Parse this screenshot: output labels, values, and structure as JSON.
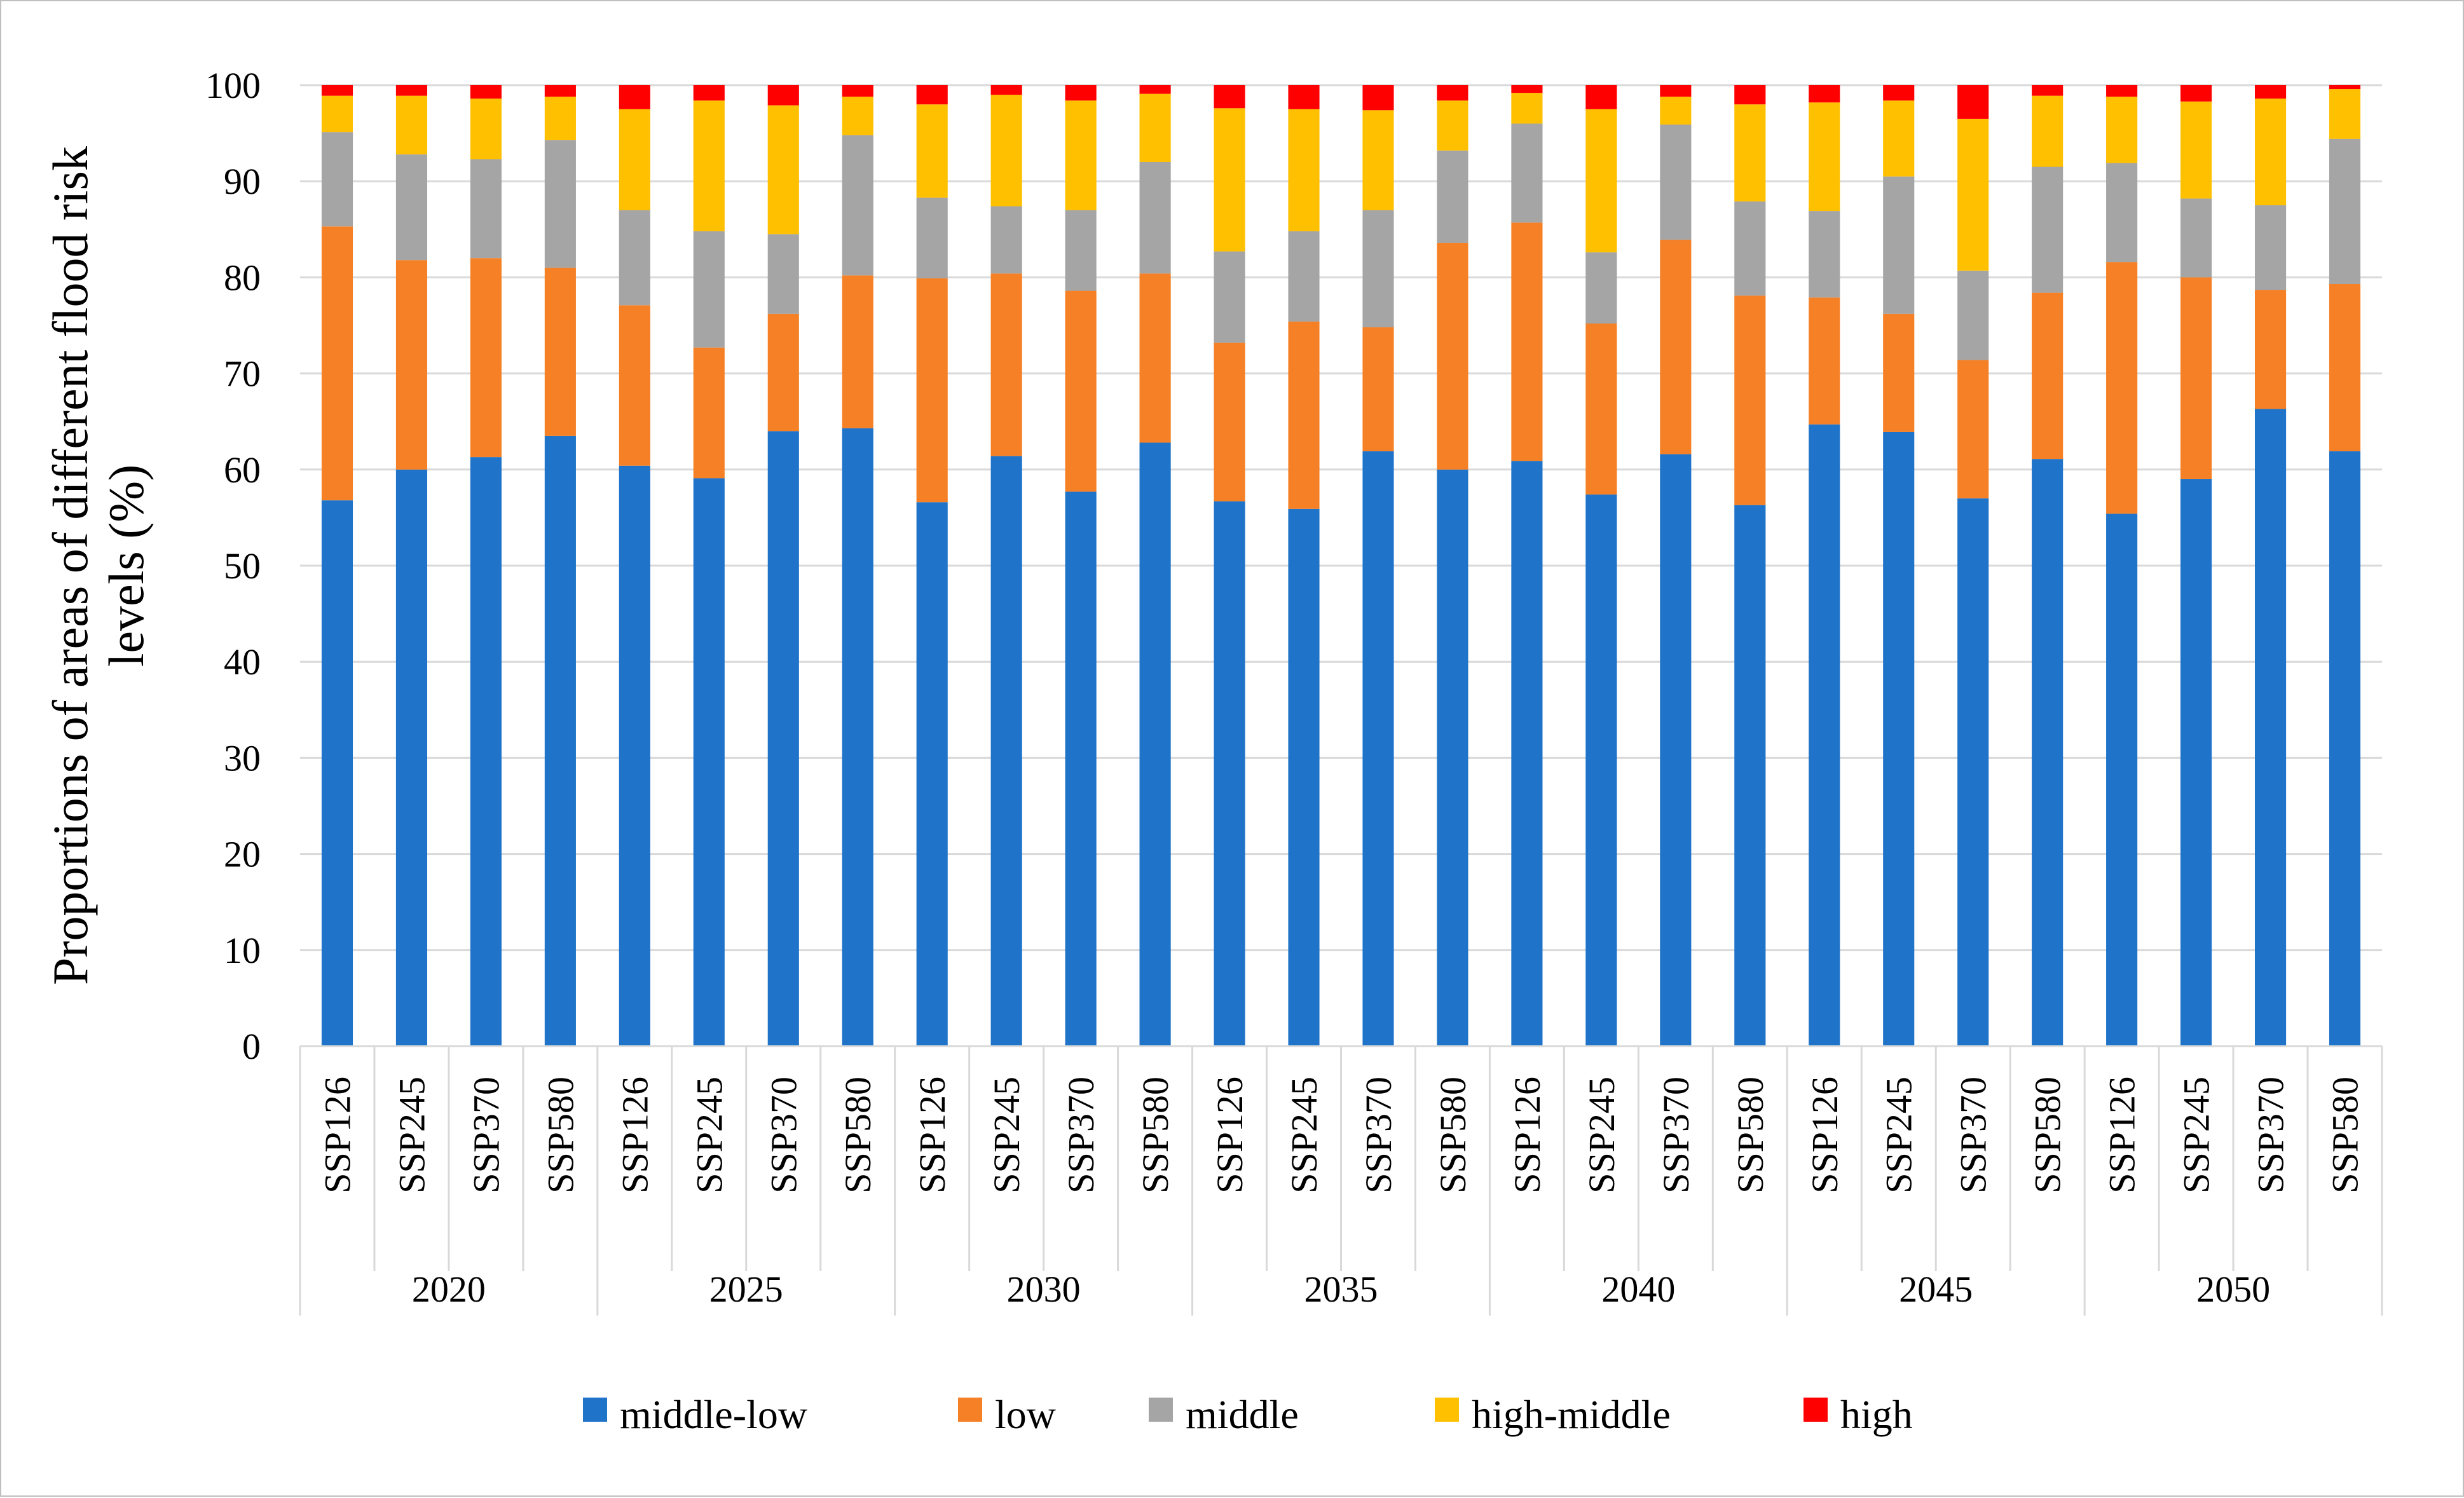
{
  "chart_data": {
    "type": "bar",
    "stacked": true,
    "title": "",
    "xlabel": "",
    "ylabel": "Proportions of areas of different flood risk levels (%)",
    "ylabel_lines": [
      "Proportions of areas of different flood risk",
      "levels (%)"
    ],
    "ylim": [
      0,
      100
    ],
    "yticks": [
      0,
      10,
      20,
      30,
      40,
      50,
      60,
      70,
      80,
      90,
      100
    ],
    "grid": true,
    "legend_position": "bottom",
    "groups": [
      {
        "label": "2020",
        "categories": [
          "SSP126",
          "SSP245",
          "SSP370",
          "SSP580"
        ]
      },
      {
        "label": "2025",
        "categories": [
          "SSP126",
          "SSP245",
          "SSP370",
          "SSP580"
        ]
      },
      {
        "label": "2030",
        "categories": [
          "SSP126",
          "SSP245",
          "SSP370",
          "SSP580"
        ]
      },
      {
        "label": "2035",
        "categories": [
          "SSP126",
          "SSP245",
          "SSP370",
          "SSP580"
        ]
      },
      {
        "label": "2040",
        "categories": [
          "SSP126",
          "SSP245",
          "SSP370",
          "SSP580"
        ]
      },
      {
        "label": "2045",
        "categories": [
          "SSP126",
          "SSP245",
          "SSP370",
          "SSP580"
        ]
      },
      {
        "label": "2050",
        "categories": [
          "SSP126",
          "SSP245",
          "SSP370",
          "SSP580"
        ]
      }
    ],
    "series": [
      {
        "name": "middle-low",
        "color": "#1f73c8",
        "values": [
          56.8,
          60.0,
          61.3,
          63.5,
          60.4,
          59.1,
          64.0,
          64.3,
          56.6,
          61.4,
          57.7,
          62.8,
          56.7,
          55.9,
          61.9,
          60.0,
          60.9,
          57.4,
          61.6,
          56.3,
          64.7,
          63.9,
          57.0,
          61.1,
          55.4,
          59.0,
          66.3,
          61.9
        ]
      },
      {
        "name": "low",
        "color": "#f58026",
        "values": [
          28.5,
          21.8,
          20.7,
          17.5,
          16.7,
          13.6,
          12.2,
          15.9,
          23.3,
          19.0,
          20.9,
          17.6,
          16.5,
          19.5,
          12.9,
          23.6,
          24.8,
          17.8,
          22.3,
          21.8,
          13.2,
          12.3,
          14.4,
          17.3,
          26.2,
          21.0,
          12.4,
          17.4
        ]
      },
      {
        "name": "middle",
        "color": "#a5a5a5",
        "values": [
          9.8,
          11.0,
          10.3,
          13.3,
          9.9,
          12.1,
          8.3,
          14.6,
          8.4,
          7.0,
          8.4,
          11.6,
          9.5,
          9.4,
          12.2,
          9.6,
          10.3,
          7.4,
          12.0,
          9.8,
          9.0,
          14.3,
          9.3,
          13.1,
          10.3,
          8.2,
          8.8,
          15.1
        ]
      },
      {
        "name": "high-middle",
        "color": "#ffc000",
        "values": [
          3.8,
          6.1,
          6.3,
          4.5,
          10.5,
          13.6,
          13.4,
          4.0,
          9.7,
          11.6,
          11.4,
          7.1,
          14.9,
          12.7,
          10.4,
          5.2,
          3.2,
          14.9,
          2.9,
          10.1,
          11.3,
          7.9,
          15.8,
          7.4,
          6.9,
          10.1,
          11.1,
          5.2
        ]
      },
      {
        "name": "high",
        "color": "#ff0000",
        "values": [
          1.1,
          1.1,
          1.4,
          1.2,
          2.5,
          1.6,
          2.1,
          1.2,
          2.0,
          1.0,
          1.6,
          0.9,
          2.4,
          2.5,
          2.6,
          1.6,
          0.8,
          2.5,
          1.2,
          2.0,
          1.8,
          1.6,
          3.5,
          1.1,
          1.2,
          1.7,
          1.4,
          0.4
        ]
      }
    ]
  }
}
